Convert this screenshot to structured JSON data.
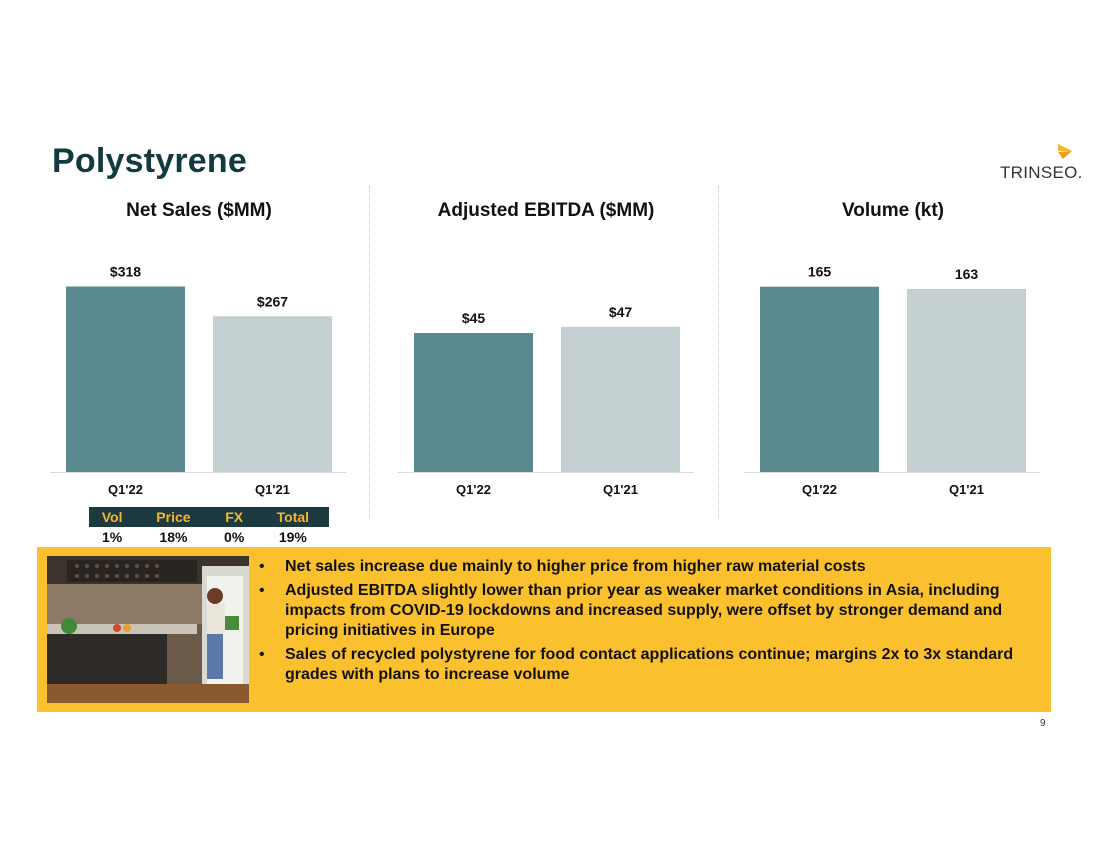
{
  "page": {
    "title": "Polystyrene",
    "logo_text": "TRINSEO.",
    "page_number": "9"
  },
  "colors": {
    "current_bar": "#5a8a8f",
    "prior_bar": "#c4cfd1",
    "title": "#123a40",
    "panel": "#fbc02d",
    "bridge_header_bg": "#1c3a40",
    "bridge_header_text": "#f5b52e",
    "logo_mark": "#f5b52e"
  },
  "chart_data": [
    {
      "type": "bar",
      "title": "Net Sales ($MM)",
      "categories": [
        "Q1'22",
        "Q1'21"
      ],
      "values": [
        318,
        267
      ],
      "value_labels": [
        "$318",
        "$267"
      ],
      "ylim": [
        0,
        360
      ]
    },
    {
      "type": "bar",
      "title": "Adjusted EBITDA ($MM)",
      "categories": [
        "Q1'22",
        "Q1'21"
      ],
      "values": [
        45,
        47
      ],
      "value_labels": [
        "$45",
        "$47"
      ],
      "ylim": [
        0,
        68
      ]
    },
    {
      "type": "bar",
      "title": "Volume (kt)",
      "categories": [
        "Q1'22",
        "Q1'21"
      ],
      "values": [
        165,
        163
      ],
      "value_labels": [
        "165",
        "163"
      ],
      "ylim": [
        0,
        187
      ]
    }
  ],
  "bridge_table": {
    "headers": [
      "Vol",
      "Price",
      "FX",
      "Total"
    ],
    "values": [
      "1%",
      "18%",
      "0%",
      "19%"
    ]
  },
  "bullets": [
    "Net sales increase due mainly to higher price from higher raw material costs",
    "Adjusted EBITDA slightly lower than prior year as weaker market conditions in Asia, including impacts from COVID-19 lockdowns and increased supply, were offset by stronger demand and pricing initiatives in Europe",
    "Sales of recycled polystyrene for food contact applications continue; margins 2x to 3x standard grades with plans to increase volume"
  ],
  "bullet_marker": "•"
}
